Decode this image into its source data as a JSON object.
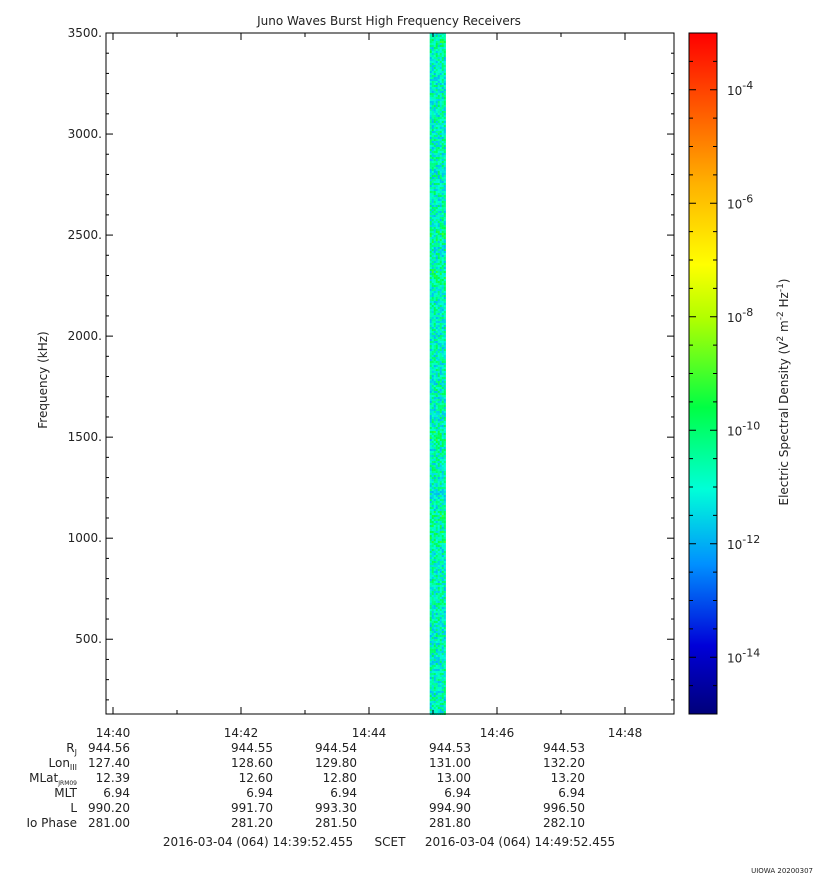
{
  "chart_data": {
    "type": "heatmap",
    "title": "Juno Waves Burst High Frequency Receivers",
    "ylabel": "Frequency (kHz)",
    "ylim": [
      130,
      3500
    ],
    "y_ticks": [
      {
        "value": 500,
        "label": "500."
      },
      {
        "value": 1000,
        "label": "1000."
      },
      {
        "value": 1500,
        "label": "1500."
      },
      {
        "value": 2000,
        "label": "2000."
      },
      {
        "value": 2500,
        "label": "2500."
      },
      {
        "value": 3000,
        "label": "3000."
      },
      {
        "value": 3500,
        "label": "3500."
      }
    ],
    "x_ticks": [
      {
        "minute": 40,
        "label": "14:40"
      },
      {
        "minute": 42,
        "label": "14:42"
      },
      {
        "minute": 44,
        "label": "14:44"
      },
      {
        "minute": 46,
        "label": "14:46"
      },
      {
        "minute": 48,
        "label": "14:48"
      }
    ],
    "x_range_label": {
      "start": "2016-03-04 (064) 14:39:52.455",
      "middle": "SCET",
      "end": "2016-03-04 (064) 14:49:52.455"
    },
    "burst": {
      "start_minute": 44.95,
      "end_minute": 45.2,
      "typical_level_exp": -11.8
    },
    "colorbar": {
      "label_main": "Electric Spectral Density (V",
      "label_sup1": "2",
      "label_mid": " m",
      "label_sup2": "-2",
      "label_hz": " Hz",
      "label_sup3": "-1",
      "label_end": ")",
      "range_exp": [
        -15,
        -3
      ],
      "scale": "log",
      "ticks": [
        {
          "exp": -4,
          "base": "10",
          "sup": "-4"
        },
        {
          "exp": -6,
          "base": "10",
          "sup": "-6"
        },
        {
          "exp": -8,
          "base": "10",
          "sup": "-8"
        },
        {
          "exp": -10,
          "base": "10",
          "sup": "-10"
        },
        {
          "exp": -12,
          "base": "10",
          "sup": "-12"
        },
        {
          "exp": -14,
          "base": "10",
          "sup": "-14"
        }
      ]
    },
    "ephemeris": {
      "rows": [
        {
          "name": "R",
          "sub": "J",
          "values": [
            "944.56",
            "944.55",
            "944.54",
            "944.53",
            "944.53"
          ]
        },
        {
          "name": "Lon",
          "sub": "III",
          "values": [
            "127.40",
            "128.60",
            "129.80",
            "131.00",
            "132.20"
          ]
        },
        {
          "name": "MLat",
          "sub": "JRM09",
          "values": [
            "12.39",
            "12.60",
            "12.80",
            "13.00",
            "13.20"
          ]
        },
        {
          "name": "MLT",
          "sub": "",
          "values": [
            "6.94",
            "6.94",
            "6.94",
            "6.94",
            "6.94"
          ]
        },
        {
          "name": "L",
          "sub": "",
          "values": [
            "990.20",
            "991.70",
            "993.30",
            "994.90",
            "996.50"
          ]
        },
        {
          "name": "Io Phase",
          "sub": "",
          "values": [
            "281.00",
            "281.20",
            "281.50",
            "281.80",
            "282.10"
          ]
        }
      ]
    }
  },
  "footer_stamp": "UIOWA 20200307"
}
